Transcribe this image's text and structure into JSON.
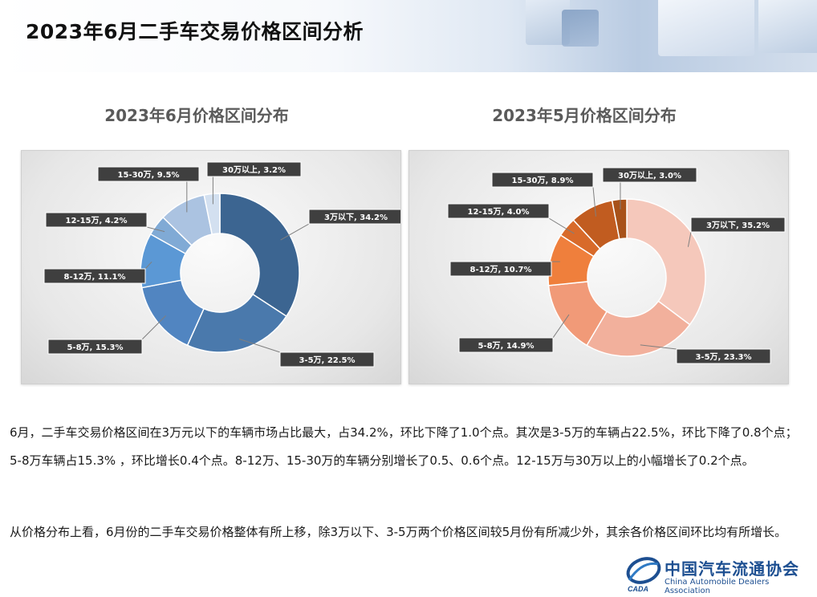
{
  "page_title": "2023年6月二手车交易价格区间分析",
  "colors": {
    "june": [
      "#3c6591",
      "#4a79ac",
      "#5185c1",
      "#5b98d5",
      "#80aad5",
      "#abc3e1",
      "#d3e0f0"
    ],
    "may": [
      "#f5c8bb",
      "#f2b09c",
      "#f19a78",
      "#ef7f3c",
      "#d86a2a",
      "#c15c20",
      "#a8521a"
    ]
  },
  "chart_data": [
    {
      "type": "pie",
      "title": "2023年6月价格区间分布",
      "series": [
        {
          "name": "3万以下",
          "value": 34.2,
          "label": "3万以下, 34.2%"
        },
        {
          "name": "3-5万",
          "value": 22.5,
          "label": "3-5万, 22.5%"
        },
        {
          "name": "5-8万",
          "value": 15.3,
          "label": "5-8万, 15.3%"
        },
        {
          "name": "8-12万",
          "value": 11.1,
          "label": "8-12万, 11.1%"
        },
        {
          "name": "12-15万",
          "value": 4.2,
          "label": "12-15万, 4.2%"
        },
        {
          "name": "15-30万",
          "value": 9.5,
          "label": "15-30万, 9.5%"
        },
        {
          "name": "30万以上",
          "value": 3.2,
          "label": "30万以上, 3.2%"
        }
      ]
    },
    {
      "type": "pie",
      "title": "2023年5月价格区间分布",
      "series": [
        {
          "name": "3万以下",
          "value": 35.2,
          "label": "3万以下, 35.2%"
        },
        {
          "name": "3-5万",
          "value": 23.3,
          "label": "3-5万, 23.3%"
        },
        {
          "name": "5-8万",
          "value": 14.9,
          "label": "5-8万, 14.9%"
        },
        {
          "name": "8-12万",
          "value": 10.7,
          "label": "8-12万, 10.7%"
        },
        {
          "name": "12-15万",
          "value": 4.0,
          "label": "12-15万, 4.0%"
        },
        {
          "name": "15-30万",
          "value": 8.9,
          "label": "15-30万, 8.9%"
        },
        {
          "name": "30万以上",
          "value": 3.0,
          "label": "30万以上, 3.0%"
        }
      ]
    }
  ],
  "paragraphs": [
    "6月，二手车交易价格区间在3万元以下的车辆市场占比最大，占34.2%，环比下降了1.0个点。其次是3-5万的车辆占22.5%，环比下降了0.8个点；5-8万车辆占15.3% ，环比增长0.4个点。8-12万、15-30万的车辆分别增长了0.5、0.6个点。12-15万与30万以上的小幅增长了0.2个点。",
    "从价格分布上看，6月份的二手车交易价格整体有所上移，除3万以下、3-5万两个价格区间较5月份有所减少外，其余各价格区间环比均有所增长。"
  ],
  "logo": {
    "name_cn": "中国汽车流通协会",
    "name_en": "China Automobile Dealers Association",
    "mark_text": "CADA"
  }
}
